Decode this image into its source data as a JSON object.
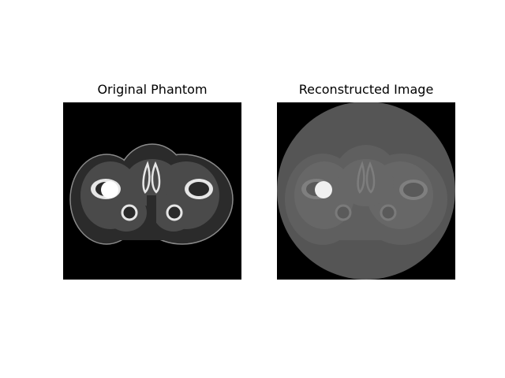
{
  "figure": {
    "panels": [
      {
        "title": "Original Phantom",
        "image": "phantom-slice"
      },
      {
        "title": "Reconstructed Image",
        "image": "reconstruction-slice"
      }
    ]
  },
  "colors": {
    "background": "#ffffff",
    "image_black": "#000000",
    "outer_body_original": "#2b2b2b",
    "inner_tissue_original": "#4a4a4a",
    "bone_original": "#e6e6e6",
    "recon_disk": "#555555",
    "recon_body": "#606060",
    "recon_inner": "#686868"
  }
}
